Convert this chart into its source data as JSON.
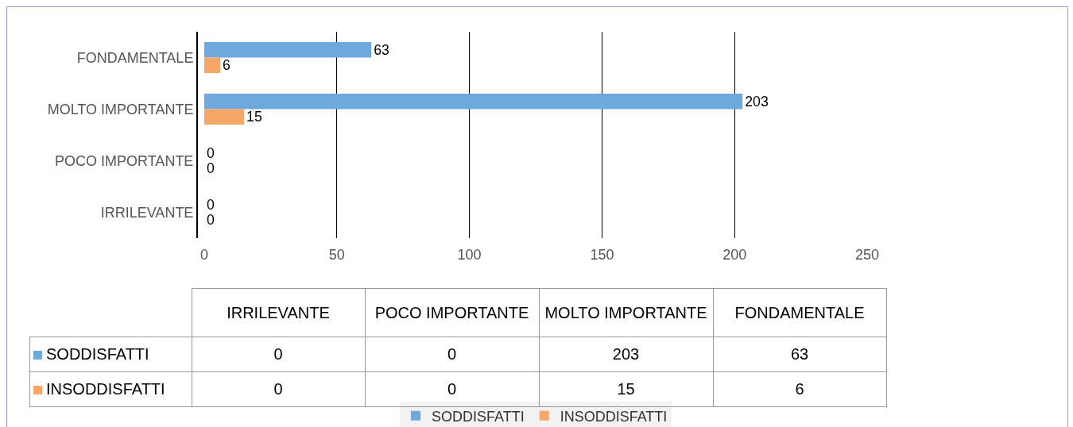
{
  "chart_data": [
    {
      "type": "bar",
      "orientation": "horizontal",
      "categories": [
        "FONDAMENTALE",
        "MOLTO IMPORTANTE",
        "POCO IMPORTANTE",
        "IRRILEVANTE"
      ],
      "series": [
        {
          "name": "SODDISFATTI",
          "color": "#6fa8dc",
          "values": [
            63,
            203,
            0,
            0
          ]
        },
        {
          "name": "INSODDISFATTI",
          "color": "#f6a666",
          "values": [
            6,
            15,
            0,
            0
          ]
        }
      ],
      "xlim": [
        0,
        250
      ],
      "xticks": [
        0,
        50,
        100,
        150,
        200,
        250
      ],
      "grid": "x",
      "legend": "bottom",
      "data_labels": true
    },
    {
      "type": "other",
      "categories": [
        "IRRILEVANTE",
        "POCO IMPORTANTE",
        "MOLTO IMPORTANTE",
        "FONDAMENTALE"
      ],
      "series": [
        {
          "name": "SODDISFATTI",
          "color": "#6fa8dc",
          "values": [
            0,
            0,
            203,
            63
          ]
        },
        {
          "name": "INSODDISFATTI",
          "color": "#f6a666",
          "values": [
            0,
            0,
            15,
            6
          ]
        }
      ],
      "data_labels": true
    }
  ]
}
